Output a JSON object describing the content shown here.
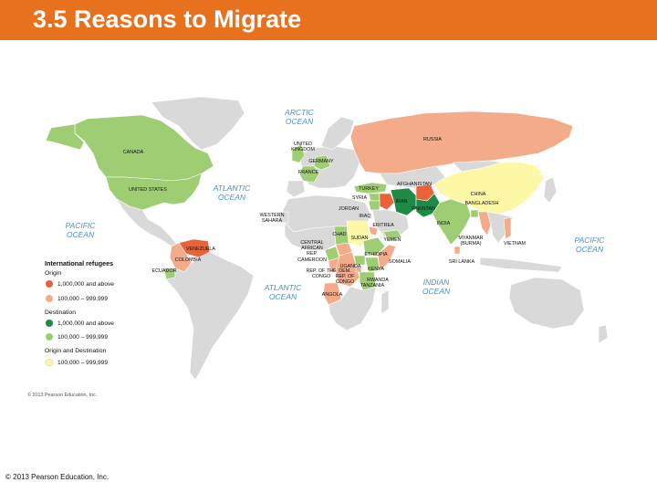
{
  "slide": {
    "title": "3.5 Reasons to Migrate",
    "footer": "© 2013 Pearson Education, Inc.",
    "header_color": "#e8711d"
  },
  "map": {
    "credit": "© 2013 Pearson Education, Inc.",
    "colors": {
      "origin_high": "#e8633a",
      "origin_mid": "#f4ab8a",
      "dest_high": "#1d8a45",
      "dest_mid": "#9fcd74",
      "both": "#fdf8a6",
      "none": "#d9d9d9",
      "ocean_text": "#4d8fc4"
    },
    "oceans": {
      "arctic_line1": "ARCTIC",
      "arctic_line2": "OCEAN",
      "atlantic_n_line1": "ATLANTIC",
      "atlantic_n_line2": "OCEAN",
      "pacific_w_line1": "PACIFIC",
      "pacific_w_line2": "OCEAN",
      "pacific_e_line1": "PACIFIC",
      "pacific_e_line2": "OCEAN",
      "atlantic_s_line1": "ATLANTIC",
      "atlantic_s_line2": "OCEAN",
      "indian_line1": "INDIAN",
      "indian_line2": "OCEAN"
    },
    "countries": {
      "canada": "CANADA",
      "united_states": "UNITED STATES",
      "united_kingdom_line1": "UNITED",
      "united_kingdom_line2": "KINGDOM",
      "germany": "GERMANY",
      "france": "FRANCE",
      "russia": "RUSSIA",
      "turkey": "TURKEY",
      "afghanistan": "AFGHANISTAN",
      "syria": "SYRIA",
      "iran": "IRAN",
      "pakistan": "PAKISTAN",
      "jordan": "JORDAN",
      "iraq": "IRAQ",
      "china": "CHINA",
      "bangladesh": "BANGLADESH",
      "india": "INDIA",
      "western_sahara_line1": "WESTERN",
      "western_sahara_line2": "SAHARA",
      "chad": "CHAD",
      "sudan": "SUDAN",
      "eritrea": "ERITREA",
      "yemen": "YEMEN",
      "central_african_rep_line1": "CENTRAL",
      "central_african_rep_line2": "AFRICAN",
      "central_african_rep_line3": "REP.",
      "cameroon": "CAMEROON",
      "ethiopia": "ETHIOPIA",
      "somalia": "SOMALIA",
      "kenya": "KENYA",
      "uganda": "UGANDA",
      "rep_of_congo_line1": "REP. OF THE",
      "rep_of_congo_line2": "CONGO",
      "dem_rep_congo_line1": "DEM.",
      "dem_rep_congo_line2": "REP. OF",
      "dem_rep_congo_line3": "CONGO",
      "rwanda": "RWANDA",
      "tanzania": "TANZANIA",
      "angola": "ANGOLA",
      "myanmar_line1": "MYANMAR",
      "myanmar_line2": "(BURMA)",
      "sri_lanka": "SRI LANKA",
      "vietnam": "VIETNAM",
      "venezuela": "VENEZUELA",
      "colombia": "COLOMBIA",
      "ecuador": "ECUADOR"
    },
    "legend": {
      "title": "International refugees",
      "origin_heading": "Origin",
      "origin_high": "1,000,000 and above",
      "origin_mid": "100,000 – 999,999",
      "destination_heading": "Destination",
      "destination_high": "1,000,000 and above",
      "destination_mid": "100,000 – 999,999",
      "both_heading": "Origin and Destination",
      "both_mid": "100,000 – 999,999"
    }
  }
}
